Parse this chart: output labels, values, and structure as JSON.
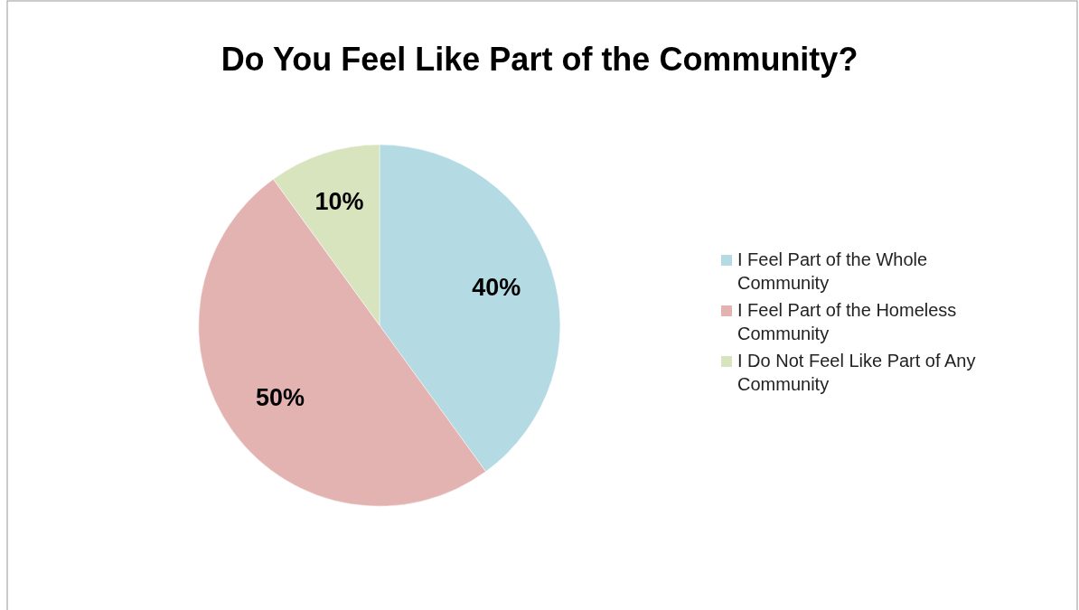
{
  "chart_data": {
    "type": "pie",
    "title": "Do You Feel Like Part of the Community?",
    "categories": [
      "I Feel Part of the Whole Community",
      "I Feel Part of the Homeless Community",
      "I Do Not Feel Like Part of Any Community"
    ],
    "values": [
      40,
      50,
      10
    ],
    "colors": [
      "#b4dbe4",
      "#e3b3b1",
      "#d7e4bd"
    ],
    "value_labels": [
      "40%",
      "50%",
      "10%"
    ],
    "legend": "right"
  }
}
